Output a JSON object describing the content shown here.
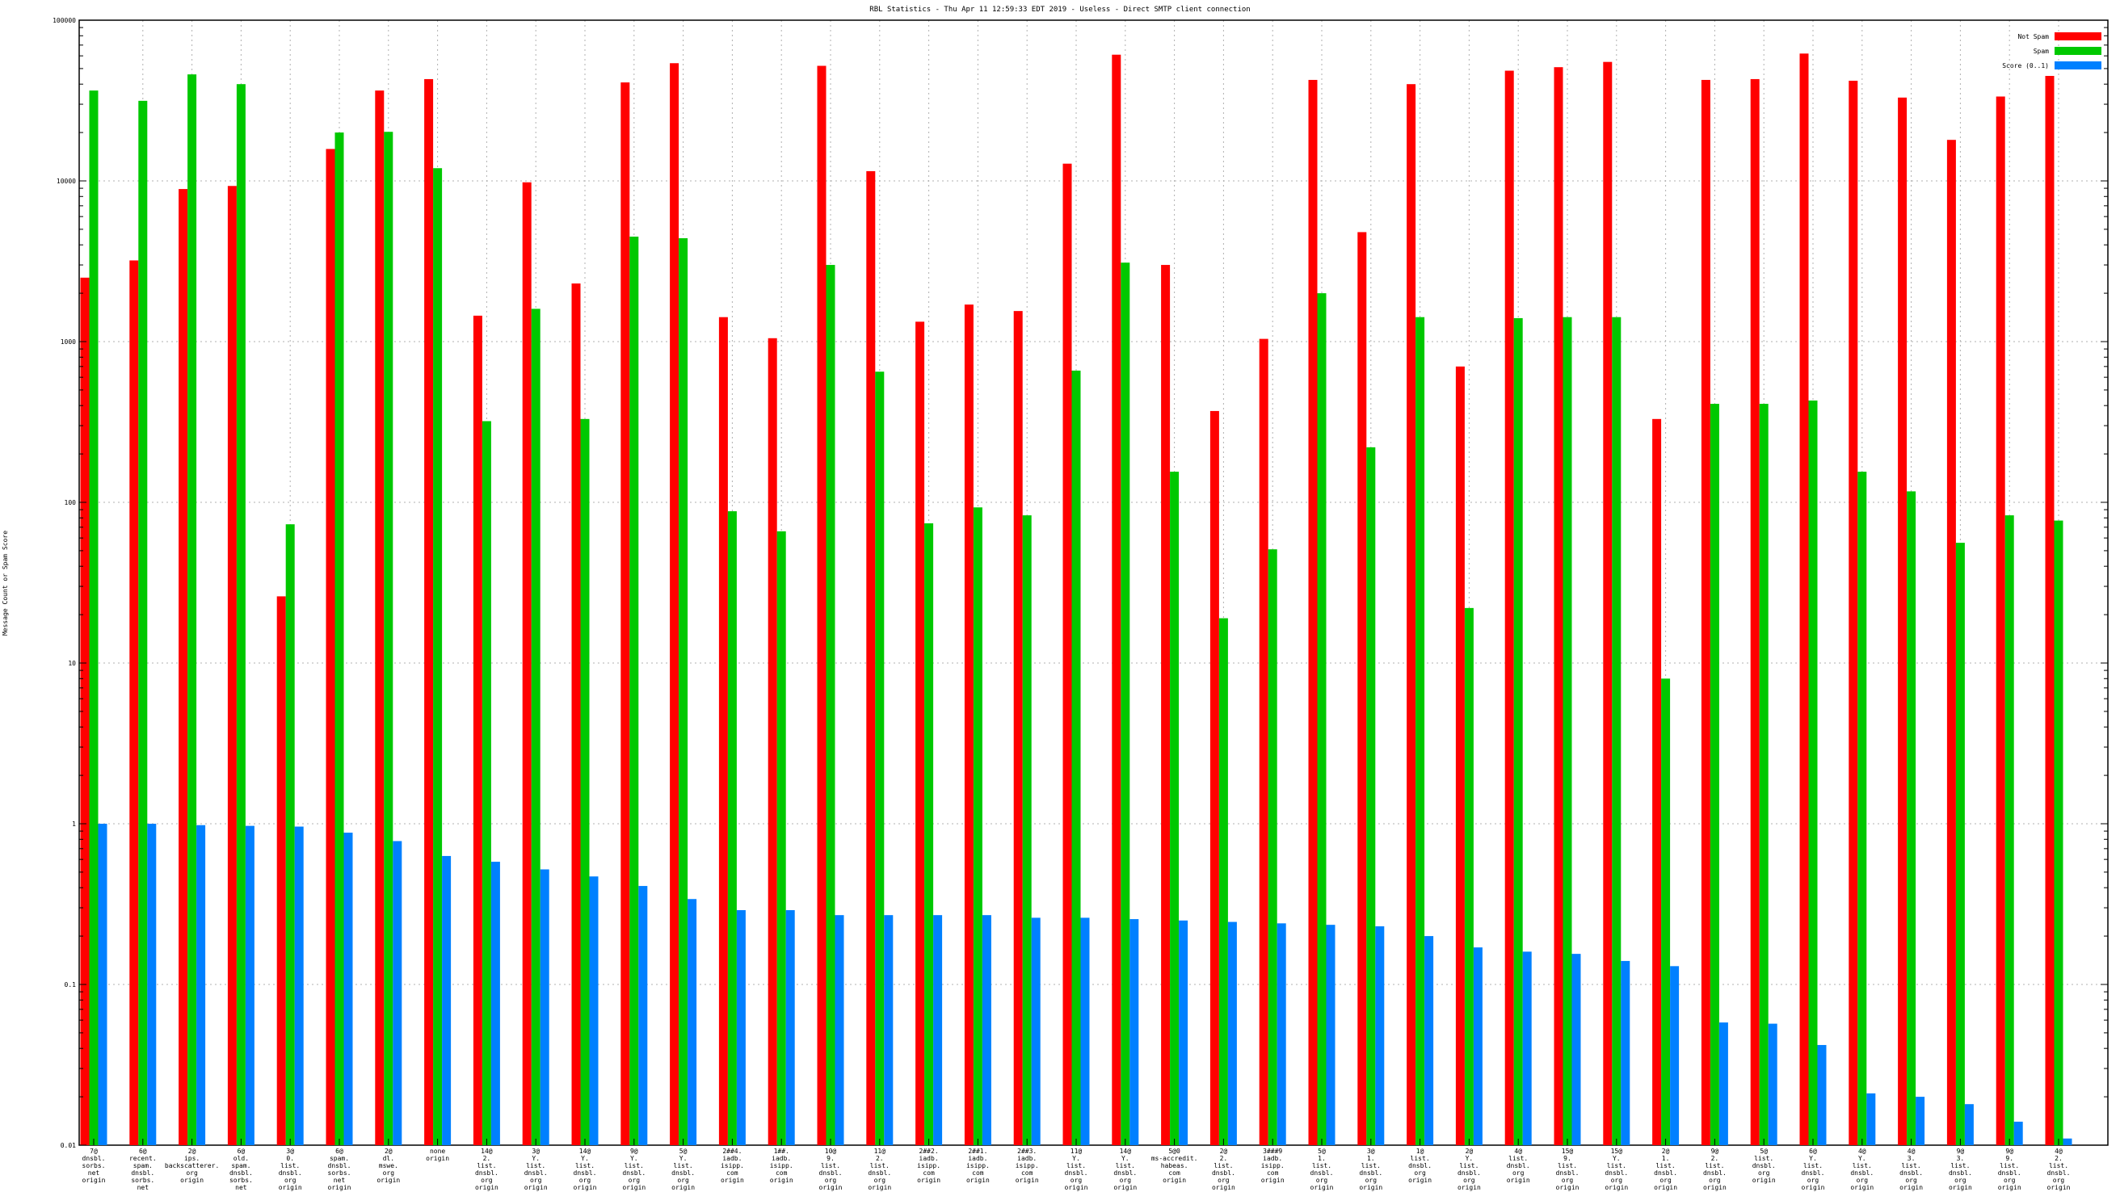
{
  "chart_data": {
    "type": "bar",
    "title": "RBL Statistics - Thu Apr 11 12:59:33 EDT 2019 - Useless - Direct SMTP client connection",
    "xlabel": "",
    "ylabel": "Message Count or Spam Score",
    "yscale": "log",
    "ylim": [
      0.01,
      100000
    ],
    "yticks": [
      "0.01",
      "0.1",
      "1",
      "10",
      "100",
      "1000",
      "10000",
      "100000"
    ],
    "grid": true,
    "legend": "top-right",
    "categories": [
      [
        "7@",
        "dnsbl.",
        "sorbs.",
        "net",
        "origin"
      ],
      [
        "6@",
        "recent.",
        "spam.",
        "dnsbl.",
        "sorbs.",
        "net",
        "origin"
      ],
      [
        "2@",
        "ips.",
        "backscatterer.",
        "org",
        "origin"
      ],
      [
        "6@",
        "old.",
        "spam.",
        "dnsbl.",
        "sorbs.",
        "net",
        "origin"
      ],
      [
        "3@",
        "0.",
        "list.",
        "dnsbl.",
        "org",
        "origin"
      ],
      [
        "6@",
        "spam.",
        "dnsbl.",
        "sorbs.",
        "net",
        "origin"
      ],
      [
        "2@",
        "dl.",
        "mswe.",
        "org",
        "origin"
      ],
      [
        "none",
        "origin"
      ],
      [
        "14@",
        "2.",
        "list.",
        "dnsbl.",
        "org",
        "origin"
      ],
      [
        "3@",
        "Y.",
        "list.",
        "dnsbl.",
        "org",
        "origin"
      ],
      [
        "14@",
        "Y.",
        "list.",
        "dnsbl.",
        "org",
        "origin"
      ],
      [
        "9@",
        "Y.",
        "list.",
        "dnsbl.",
        "org",
        "origin"
      ],
      [
        "5@",
        "Y.",
        "list.",
        "dnsbl.",
        "org",
        "origin"
      ],
      [
        "2##4.",
        "iadb.",
        "isipp.",
        "com",
        "origin"
      ],
      [
        "1##.",
        "iadb.",
        "isipp.",
        "com",
        "origin"
      ],
      [
        "10@",
        "9.",
        "list.",
        "dnsbl.",
        "org",
        "origin"
      ],
      [
        "11@",
        "2.",
        "list.",
        "dnsbl.",
        "org",
        "origin"
      ],
      [
        "2##2.",
        "iadb.",
        "isipp.",
        "com",
        "origin"
      ],
      [
        "2##1.",
        "iadb.",
        "isipp.",
        "com",
        "origin"
      ],
      [
        "2##3.",
        "iadb.",
        "isipp.",
        "com",
        "origin"
      ],
      [
        "11@",
        "Y.",
        "list.",
        "dnsbl.",
        "org",
        "origin"
      ],
      [
        "14@",
        "Y.",
        "list.",
        "dnsbl.",
        "org",
        "origin"
      ],
      [
        "5@0",
        "ms-accredit.",
        "habeas.",
        "com",
        "origin"
      ],
      [
        "2@",
        "2.",
        "list.",
        "dnsbl.",
        "org",
        "origin"
      ],
      [
        "3###9",
        "iadb.",
        "isipp.",
        "com",
        "origin"
      ],
      [
        "5@",
        "1.",
        "list.",
        "dnsbl.",
        "org",
        "origin"
      ],
      [
        "3@",
        "1.",
        "list.",
        "dnsbl.",
        "org",
        "origin"
      ],
      [
        "1@",
        "list.",
        "dnsbl.",
        "org",
        "origin"
      ],
      [
        "2@",
        "Y.",
        "list.",
        "dnsbl.",
        "org",
        "origin"
      ],
      [
        "4@",
        "list.",
        "dnsbl.",
        "org",
        "origin"
      ],
      [
        "15@",
        "9.",
        "list.",
        "dnsbl.",
        "org",
        "origin"
      ],
      [
        "15@",
        "Y.",
        "list.",
        "dnsbl.",
        "org",
        "origin"
      ],
      [
        "2@",
        "1.",
        "list.",
        "dnsbl.",
        "org",
        "origin"
      ],
      [
        "9@",
        "2.",
        "list.",
        "dnsbl.",
        "org",
        "origin"
      ],
      [
        "5@",
        "list.",
        "dnsbl.",
        "org",
        "origin"
      ],
      [
        "6@",
        "Y.",
        "list.",
        "dnsbl.",
        "org",
        "origin"
      ],
      [
        "4@",
        "Y.",
        "list.",
        "dnsbl.",
        "org",
        "origin"
      ],
      [
        "4@",
        "3.",
        "list.",
        "dnsbl.",
        "org",
        "origin"
      ],
      [
        "9@",
        "3.",
        "list.",
        "dnsbl.",
        "org",
        "origin"
      ],
      [
        "9@",
        "9.",
        "list.",
        "dnsbl.",
        "org",
        "origin"
      ],
      [
        "4@",
        "2.",
        "list.",
        "dnsbl.",
        "org",
        "origin"
      ]
    ],
    "series": [
      {
        "name": "Not Spam",
        "color": "#ff0000",
        "values": [
          2500,
          3200,
          8900,
          9300,
          26,
          15800,
          36500,
          43000,
          1450,
          9800,
          2300,
          41000,
          54000,
          1420,
          1050,
          52000,
          11500,
          1330,
          1700,
          1550,
          12800,
          61000,
          3000,
          370,
          1040,
          42500,
          4800,
          40000,
          700,
          48500,
          51000,
          55000,
          330,
          42500,
          43000,
          62000,
          42000,
          33000,
          18000,
          33500,
          45000
        ]
      },
      {
        "name": "Spam",
        "color": "#00c800",
        "values": [
          36500,
          31500,
          46000,
          40000,
          73,
          20000,
          20200,
          12000,
          320,
          1600,
          330,
          4500,
          4400,
          88,
          66,
          3000,
          650,
          74,
          93,
          83,
          660,
          3100,
          155,
          19,
          51,
          2000,
          220,
          1420,
          22,
          1400,
          1420,
          1420,
          8,
          410,
          410,
          430,
          155,
          117,
          56,
          83,
          77
        ]
      },
      {
        "name": "Score (0..1)",
        "color": "#0080ff",
        "values": [
          1.0,
          1.0,
          0.98,
          0.97,
          0.96,
          0.88,
          0.78,
          0.63,
          0.58,
          0.52,
          0.47,
          0.41,
          0.34,
          0.29,
          0.29,
          0.27,
          0.27,
          0.27,
          0.27,
          0.26,
          0.26,
          0.255,
          0.25,
          0.245,
          0.24,
          0.235,
          0.23,
          0.2,
          0.17,
          0.16,
          0.155,
          0.14,
          0.13,
          0.058,
          0.057,
          0.042,
          0.021,
          0.02,
          0.018,
          0.014,
          0.011
        ]
      }
    ]
  }
}
